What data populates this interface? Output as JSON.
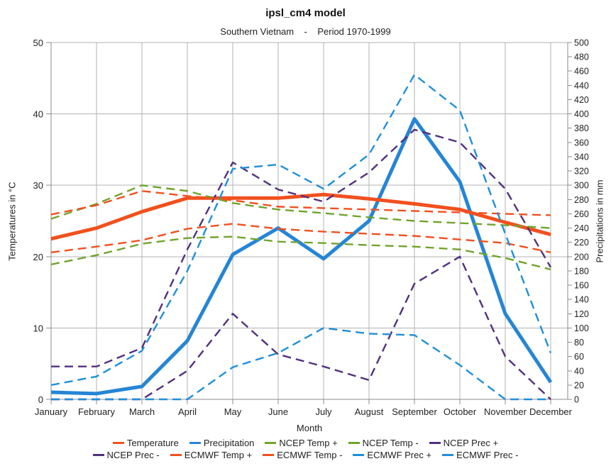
{
  "chart": {
    "title": "ipsl_cm4 model",
    "subtitle": "Southern Vietnam    -    Period 1970-1999",
    "xlabel": "Month",
    "ylabel_left": "Temperatures in °C",
    "ylabel_right": "Precipitations in mm"
  },
  "chart_data": {
    "type": "line",
    "title": "ipsl_cm4 model",
    "subtitle": "Southern Vietnam - Period 1970-1999",
    "xlabel": "Month",
    "categories": [
      "January",
      "February",
      "March",
      "April",
      "May",
      "June",
      "July",
      "August",
      "September",
      "October",
      "November",
      "December"
    ],
    "left_axis": {
      "label": "Temperatures in °C",
      "min": 0,
      "max": 50,
      "tick_step": 10
    },
    "right_axis": {
      "label": "Precipitations in mm",
      "min": 0,
      "max": 500,
      "tick_step": 20
    },
    "grid": true,
    "legend_position": "bottom",
    "colors": {
      "temperature_red": "#f1501e",
      "precipitation_blue": "#2585d5",
      "ncep_green": "#70a42d",
      "ncep_purple": "#51317f",
      "ecmwf_red": "#f1501e",
      "ecmwf_blue": "#1f8fd9",
      "grid_gray": "#b3b3b3",
      "axis_gray": "#8c8c8c"
    },
    "series": [
      {
        "name": "Temperature",
        "axis": "left",
        "style": "solid",
        "color": "#f1501e",
        "values": [
          22.5,
          24.0,
          26.3,
          28.2,
          28.2,
          28.2,
          28.7,
          28.1,
          27.4,
          26.6,
          24.8,
          23.1
        ]
      },
      {
        "name": "Precipitation",
        "axis": "right",
        "style": "solid",
        "color": "#2585d5",
        "values": [
          10,
          8,
          18,
          82,
          203,
          240,
          197,
          250,
          393,
          305,
          120,
          24
        ]
      },
      {
        "name": "NCEP Temp +",
        "axis": "left",
        "style": "dashed",
        "color": "#70a42d",
        "values": [
          25.3,
          27.4,
          30.0,
          29.2,
          27.5,
          26.6,
          26.1,
          25.5,
          25.0,
          24.7,
          24.4,
          24.0
        ]
      },
      {
        "name": "NCEP Temp -",
        "axis": "left",
        "style": "dashed",
        "color": "#70a42d",
        "values": [
          18.9,
          20.2,
          21.8,
          22.6,
          22.8,
          22.1,
          21.9,
          21.6,
          21.4,
          21.0,
          19.8,
          18.2
        ]
      },
      {
        "name": "NCEP Prec +",
        "axis": "right",
        "style": "dashed",
        "color": "#51317f",
        "values": [
          46,
          46,
          72,
          210,
          332,
          294,
          277,
          318,
          378,
          360,
          295,
          185
        ]
      },
      {
        "name": "NCEP Prec -",
        "axis": "right",
        "style": "dashed",
        "color": "#51317f",
        "values": [
          0,
          0,
          0,
          40,
          120,
          63,
          46,
          27,
          162,
          200,
          60,
          0
        ]
      },
      {
        "name": "ECMWF Temp +",
        "axis": "left",
        "style": "dashed",
        "color": "#f1501e",
        "values": [
          25.9,
          27.2,
          29.2,
          28.5,
          27.9,
          27.0,
          26.8,
          26.6,
          26.4,
          26.2,
          26.0,
          25.8
        ]
      },
      {
        "name": "ECMWF Temp -",
        "axis": "left",
        "style": "dashed",
        "color": "#f1501e",
        "values": [
          20.6,
          21.4,
          22.3,
          23.9,
          24.6,
          23.9,
          23.5,
          23.2,
          22.9,
          22.4,
          21.9,
          20.6
        ]
      },
      {
        "name": "ECMWF Prec +",
        "axis": "right",
        "style": "dashed",
        "color": "#1f8fd9",
        "values": [
          20,
          32,
          68,
          180,
          323,
          329,
          295,
          343,
          455,
          405,
          232,
          65
        ]
      },
      {
        "name": "ECMWF Prec -",
        "axis": "right",
        "style": "dashed",
        "color": "#1f8fd9",
        "values": [
          0,
          0,
          0,
          0,
          45,
          65,
          100,
          92,
          90,
          48,
          0,
          0
        ]
      }
    ],
    "legend_rows": [
      [
        0,
        1,
        2,
        3,
        4
      ],
      [
        5,
        6,
        7,
        8,
        9
      ]
    ],
    "draw_order": [
      1,
      0,
      2,
      3,
      4,
      5,
      6,
      7,
      8,
      9
    ]
  }
}
